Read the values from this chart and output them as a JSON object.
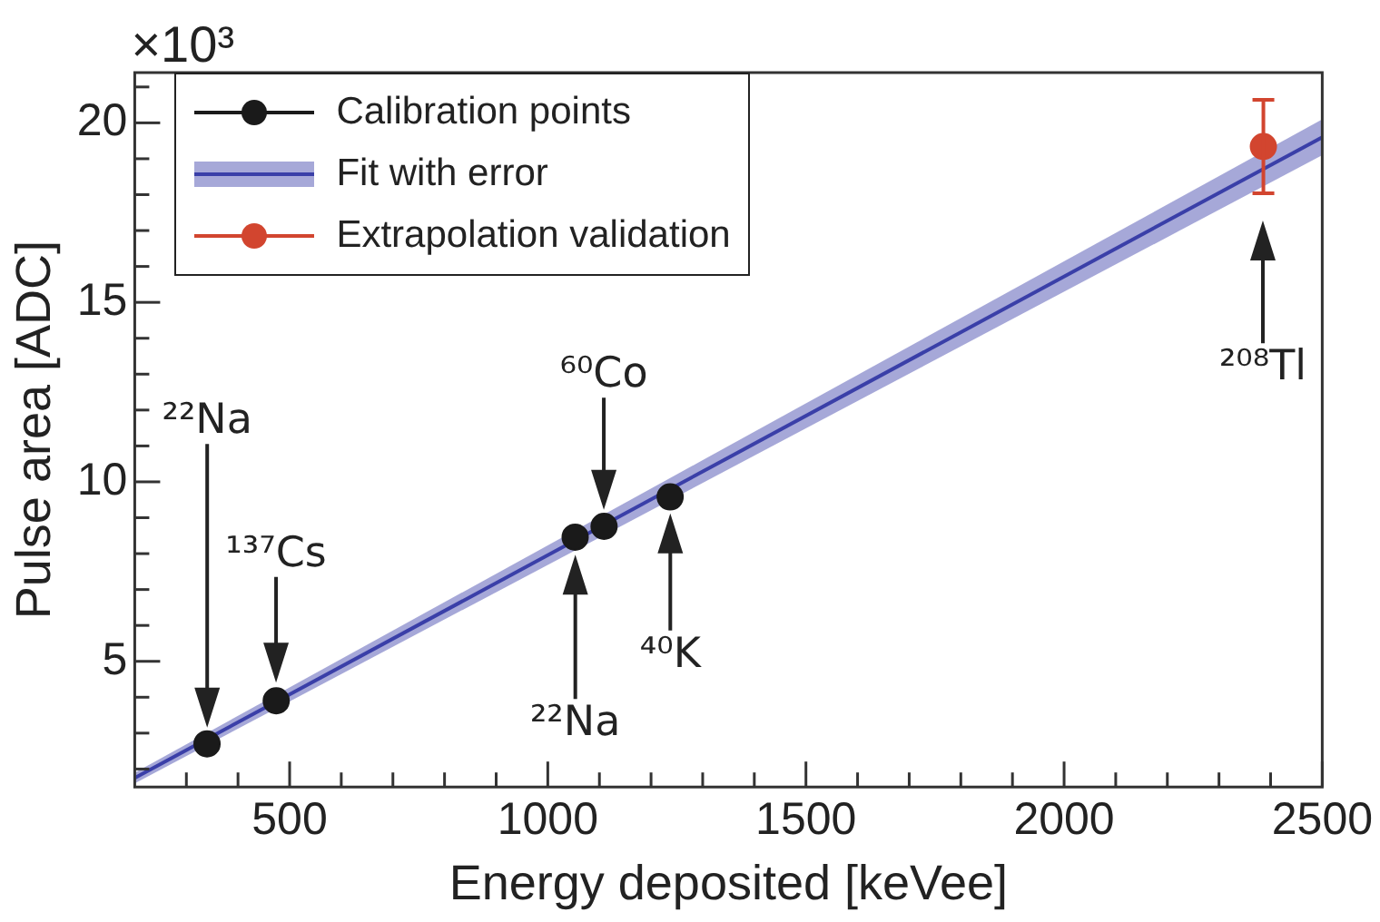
{
  "chart_data": {
    "type": "scatter",
    "xlabel": "Energy deposited [keVee]",
    "ylabel": "Pulse area [ADC]",
    "xlim": [
      200,
      2500
    ],
    "ylim": [
      1.5,
      21.4
    ],
    "xticks": [
      {
        "value": 300,
        "label": null
      },
      {
        "value": 400,
        "label": null
      },
      500,
      {
        "value": 600,
        "label": null
      },
      {
        "value": 700,
        "label": null
      },
      {
        "value": 800,
        "label": null
      },
      {
        "value": 900,
        "label": null
      },
      1000,
      {
        "value": 1100,
        "label": null
      },
      {
        "value": 1200,
        "label": null
      },
      {
        "value": 1300,
        "label": null
      },
      {
        "value": 1400,
        "label": null
      },
      1500,
      {
        "value": 1600,
        "label": null
      },
      {
        "value": 1700,
        "label": null
      },
      {
        "value": 1800,
        "label": null
      },
      {
        "value": 1900,
        "label": null
      },
      2000,
      {
        "value": 2100,
        "label": null
      },
      {
        "value": 2200,
        "label": null
      },
      {
        "value": 2300,
        "label": null
      },
      {
        "value": 2400,
        "label": null
      },
      2500
    ],
    "yticks": [
      {
        "value": 2,
        "label": null
      },
      {
        "value": 3,
        "label": null
      },
      {
        "value": 4,
        "label": null
      },
      5,
      {
        "value": 6,
        "label": null
      },
      {
        "value": 7,
        "label": null
      },
      {
        "value": 8,
        "label": null
      },
      {
        "value": 9,
        "label": null
      },
      10,
      {
        "value": 11,
        "label": null
      },
      {
        "value": 12,
        "label": null
      },
      {
        "value": 13,
        "label": null
      },
      {
        "value": 14,
        "label": null
      },
      15,
      {
        "value": 16,
        "label": null
      },
      {
        "value": 17,
        "label": null
      },
      {
        "value": 18,
        "label": null
      },
      {
        "value": 19,
        "label": null
      },
      20,
      {
        "value": 21,
        "label": null
      }
    ],
    "grid": false,
    "legend": "top left",
    "marker": "circle",
    "series": [
      {
        "name": "Calibration points",
        "color": "#1a1a1a",
        "x": [
          340,
          474,
          1053,
          1109,
          1237
        ],
        "values": [
          2.7,
          3.9,
          8.46,
          8.76,
          9.58
        ]
      },
      {
        "name": "Fit with error",
        "type": "line",
        "marker": "none",
        "color": "#3a3fa8",
        "x": [
          200,
          2500
        ],
        "values": [
          1.75,
          19.6
        ],
        "lower": [
          1.6,
          19.1
        ],
        "upper": [
          1.9,
          20.1
        ]
      },
      {
        "name": "Extrapolation validation",
        "color": "#d2452f",
        "x": [
          2386
        ],
        "values": [
          19.34
        ],
        "errors": [
          1.3
        ]
      }
    ],
    "annotations": [
      "×10³",
      "²²Na",
      "¹³⁷Cs",
      "⁶⁰Co",
      "²²Na",
      "⁴⁰K",
      "²⁰⁸Tl"
    ]
  }
}
